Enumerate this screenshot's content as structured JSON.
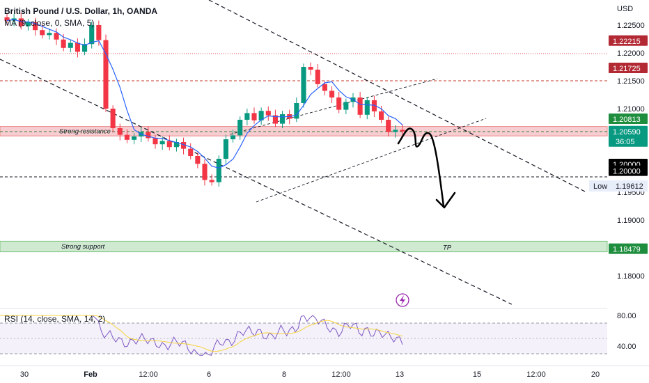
{
  "header": {
    "title": "British Pound / U.S. Dollar, 1h, OANDA",
    "indicator": "MA (9, close, 0, SMA, 5)"
  },
  "rsi": {
    "label": "RSI (14, close, SMA, 14, 2)",
    "upper": 70,
    "lower": 30,
    "ticks": [
      "80.00",
      "40.00"
    ]
  },
  "currency": "USD",
  "colors": {
    "up": "#089981",
    "down": "#f23645",
    "ma": "#2962ff",
    "rsi": "#7e57c2",
    "rsi_ma": "#f5d33b",
    "resistance_zone": "#f7c5c9",
    "support_zone": "#c8e6c9"
  },
  "chart_data": {
    "type": "candlestick",
    "symbol": "GBPUSD",
    "ylim": [
      1.1745,
      1.2295
    ],
    "y_ticks": [
      "1.22500",
      "1.22000",
      "1.21500",
      "1.21000",
      "1.20500",
      "1.20000",
      "1.19500",
      "1.19000",
      "1.18500",
      "1.18000"
    ],
    "x_ticks": [
      "30",
      "Feb",
      "12:00",
      "6",
      "8",
      "12:00",
      "13",
      "15",
      "12:00",
      "20"
    ],
    "price_badges": [
      {
        "text": "1.22215",
        "price": 1.22215,
        "color": "#b22833"
      },
      {
        "text": "1.21725",
        "price": 1.21725,
        "color": "#b22833"
      },
      {
        "text": "1.20813",
        "price": 1.20813,
        "color": "#1e8e3e"
      },
      {
        "text": "1.20590",
        "sub": "36:05",
        "price": 1.2059,
        "color": "#089981"
      },
      {
        "text": "1.20000",
        "price": 1.2,
        "color": "#000000"
      },
      {
        "text": "1.20000",
        "price": 1.1988,
        "color": "#000000"
      },
      {
        "text": "1.19612",
        "label": "Low",
        "price": 1.19612,
        "color": "#e8eef9"
      },
      {
        "text": "1.18479",
        "price": 1.18479,
        "color": "#1e8e3e"
      }
    ],
    "zones": [
      {
        "label": "Strong resistance",
        "from": 1.2051,
        "to": 1.2068
      },
      {
        "label": "Strong support",
        "from": 1.1843,
        "to": 1.1862
      }
    ],
    "target_label": "TP",
    "close": [
      1.2258,
      1.2262,
      1.2248,
      1.2255,
      1.2241,
      1.2232,
      1.2236,
      1.2224,
      1.2209,
      1.2218,
      1.2202,
      1.2216,
      1.225,
      1.2223,
      1.21,
      1.2065,
      1.2053,
      1.2044,
      1.205,
      1.2058,
      1.2047,
      1.2036,
      1.2042,
      1.2031,
      1.204,
      1.2028,
      1.2015,
      1.2001,
      1.1972,
      1.1968,
      1.201,
      1.2045,
      1.2052,
      1.208,
      1.2092,
      1.2079,
      1.2096,
      1.2088,
      1.2073,
      1.209,
      1.2082,
      1.211,
      1.2175,
      1.217,
      1.2144,
      1.2132,
      1.212,
      1.2098,
      1.2112,
      1.212,
      1.2089,
      1.2115,
      1.2095,
      1.208,
      1.2058,
      1.2062,
      1.2059
    ]
  }
}
